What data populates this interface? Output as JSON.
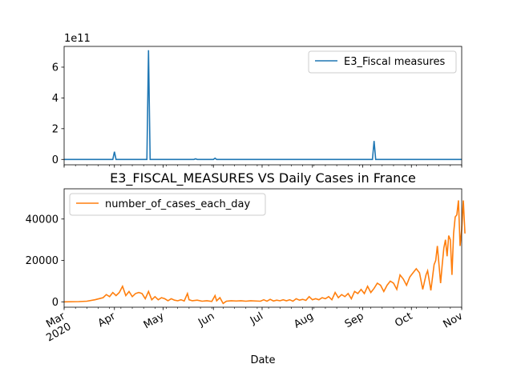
{
  "chart_data": [
    {
      "type": "line",
      "title": "",
      "xlabel": "",
      "ylabel": "",
      "offset_label": "1e11",
      "ylim": [
        -0.35,
        7.35
      ],
      "y_ticks": [
        0,
        2,
        4,
        6
      ],
      "y_tick_labels": [
        "0",
        "2",
        "4",
        "6"
      ],
      "xlim": [
        "2020-03-01",
        "2020-11-01"
      ],
      "grid": false,
      "legend": "upper right",
      "series": [
        {
          "name": "E3_Fiscal measures",
          "color": "#1f77b4",
          "points": [
            [
              "2020-03-01",
              0
            ],
            [
              "2020-03-31",
              0
            ],
            [
              "2020-04-01",
              0.5
            ],
            [
              "2020-04-02",
              0
            ],
            [
              "2020-04-21",
              0
            ],
            [
              "2020-04-22",
              7.1
            ],
            [
              "2020-04-23",
              0
            ],
            [
              "2020-05-20",
              0
            ],
            [
              "2020-05-21",
              0.04
            ],
            [
              "2020-05-22",
              0
            ],
            [
              "2020-06-01",
              0
            ],
            [
              "2020-06-02",
              0.08
            ],
            [
              "2020-06-03",
              0
            ],
            [
              "2020-09-07",
              0
            ],
            [
              "2020-09-08",
              1.2
            ],
            [
              "2020-09-09",
              0
            ],
            [
              "2020-11-01",
              0
            ]
          ]
        }
      ]
    },
    {
      "type": "line",
      "title": "E3_FISCAL_MEASURES VS Daily Cases in France",
      "xlabel": "Date",
      "ylabel": "",
      "ylim": [
        -2600,
        54600
      ],
      "y_ticks": [
        0,
        20000,
        40000
      ],
      "y_tick_labels": [
        "0",
        "20000",
        "40000"
      ],
      "xlim": [
        "2020-03-01",
        "2020-11-01"
      ],
      "x_ticks": [
        "2020-03-01",
        "2020-04-01",
        "2020-05-01",
        "2020-06-01",
        "2020-07-01",
        "2020-08-01",
        "2020-09-01",
        "2020-10-01",
        "2020-11-01"
      ],
      "x_tick_labels": [
        "Mar\n2020",
        "Apr",
        "May",
        "Jun",
        "Jul",
        "Aug",
        "Sep",
        "Oct",
        "Nov"
      ],
      "grid": false,
      "legend": "upper left",
      "series": [
        {
          "name": "number_of_cases_each_day",
          "color": "#ff7f0e",
          "points": [
            [
              "2020-03-01",
              0
            ],
            [
              "2020-03-10",
              100
            ],
            [
              "2020-03-15",
              300
            ],
            [
              "2020-03-20",
              1000
            ],
            [
              "2020-03-25",
              2000
            ],
            [
              "2020-03-27",
              3500
            ],
            [
              "2020-03-29",
              2500
            ],
            [
              "2020-03-31",
              4500
            ],
            [
              "2020-04-02",
              3000
            ],
            [
              "2020-04-04",
              4500
            ],
            [
              "2020-04-06",
              7500
            ],
            [
              "2020-04-08",
              3000
            ],
            [
              "2020-04-10",
              5000
            ],
            [
              "2020-04-12",
              2500
            ],
            [
              "2020-04-14",
              4000
            ],
            [
              "2020-04-16",
              4500
            ],
            [
              "2020-04-18",
              4000
            ],
            [
              "2020-04-20",
              1500
            ],
            [
              "2020-04-22",
              5000
            ],
            [
              "2020-04-24",
              1000
            ],
            [
              "2020-04-26",
              2500
            ],
            [
              "2020-04-28",
              1000
            ],
            [
              "2020-04-30",
              2000
            ],
            [
              "2020-05-02",
              1500
            ],
            [
              "2020-05-04",
              500
            ],
            [
              "2020-05-06",
              1500
            ],
            [
              "2020-05-08",
              800
            ],
            [
              "2020-05-10",
              500
            ],
            [
              "2020-05-12",
              1000
            ],
            [
              "2020-05-14",
              400
            ],
            [
              "2020-05-16",
              4000
            ],
            [
              "2020-05-17",
              1000
            ],
            [
              "2020-05-19",
              500
            ],
            [
              "2020-05-22",
              800
            ],
            [
              "2020-05-25",
              300
            ],
            [
              "2020-05-28",
              500
            ],
            [
              "2020-05-31",
              200
            ],
            [
              "2020-06-02",
              3000
            ],
            [
              "2020-06-03",
              500
            ],
            [
              "2020-06-05",
              2000
            ],
            [
              "2020-06-07",
              -800
            ],
            [
              "2020-06-09",
              300
            ],
            [
              "2020-06-12",
              500
            ],
            [
              "2020-06-15",
              400
            ],
            [
              "2020-06-18",
              500
            ],
            [
              "2020-06-21",
              300
            ],
            [
              "2020-06-24",
              500
            ],
            [
              "2020-06-27",
              400
            ],
            [
              "2020-06-30",
              300
            ],
            [
              "2020-07-02",
              1000
            ],
            [
              "2020-07-04",
              300
            ],
            [
              "2020-07-06",
              1200
            ],
            [
              "2020-07-08",
              400
            ],
            [
              "2020-07-10",
              800
            ],
            [
              "2020-07-12",
              500
            ],
            [
              "2020-07-14",
              1000
            ],
            [
              "2020-07-16",
              500
            ],
            [
              "2020-07-18",
              1000
            ],
            [
              "2020-07-20",
              300
            ],
            [
              "2020-07-22",
              1500
            ],
            [
              "2020-07-24",
              800
            ],
            [
              "2020-07-26",
              1200
            ],
            [
              "2020-07-28",
              700
            ],
            [
              "2020-07-30",
              2500
            ],
            [
              "2020-08-01",
              1000
            ],
            [
              "2020-08-03",
              1500
            ],
            [
              "2020-08-05",
              1000
            ],
            [
              "2020-08-07",
              2000
            ],
            [
              "2020-08-09",
              1500
            ],
            [
              "2020-08-11",
              2500
            ],
            [
              "2020-08-13",
              1000
            ],
            [
              "2020-08-15",
              4500
            ],
            [
              "2020-08-17",
              2000
            ],
            [
              "2020-08-19",
              3500
            ],
            [
              "2020-08-21",
              2500
            ],
            [
              "2020-08-23",
              4000
            ],
            [
              "2020-08-25",
              1500
            ],
            [
              "2020-08-27",
              5000
            ],
            [
              "2020-08-29",
              4000
            ],
            [
              "2020-08-31",
              6000
            ],
            [
              "2020-09-02",
              4000
            ],
            [
              "2020-09-04",
              7500
            ],
            [
              "2020-09-06",
              4500
            ],
            [
              "2020-09-08",
              6500
            ],
            [
              "2020-09-10",
              9000
            ],
            [
              "2020-09-12",
              8000
            ],
            [
              "2020-09-14",
              5000
            ],
            [
              "2020-09-16",
              8000
            ],
            [
              "2020-09-18",
              10000
            ],
            [
              "2020-09-20",
              9000
            ],
            [
              "2020-09-22",
              6000
            ],
            [
              "2020-09-24",
              13000
            ],
            [
              "2020-09-26",
              11000
            ],
            [
              "2020-09-28",
              8000
            ],
            [
              "2020-09-30",
              12000
            ],
            [
              "2020-10-02",
              14000
            ],
            [
              "2020-10-04",
              16000
            ],
            [
              "2020-10-06",
              14000
            ],
            [
              "2020-10-08",
              6000
            ],
            [
              "2020-10-10",
              13000
            ],
            [
              "2020-10-11",
              15000
            ],
            [
              "2020-10-13",
              5500
            ],
            [
              "2020-10-15",
              18000
            ],
            [
              "2020-10-16",
              20000
            ],
            [
              "2020-10-17",
              27000
            ],
            [
              "2020-10-19",
              9000
            ],
            [
              "2020-10-20",
              18000
            ],
            [
              "2020-10-21",
              26000
            ],
            [
              "2020-10-22",
              30000
            ],
            [
              "2020-10-23",
              22000
            ],
            [
              "2020-10-24",
              32000
            ],
            [
              "2020-10-25",
              30000
            ],
            [
              "2020-10-26",
              13000
            ],
            [
              "2020-10-27",
              33000
            ],
            [
              "2020-10-28",
              41000
            ],
            [
              "2020-10-29",
              42000
            ],
            [
              "2020-10-30",
              49000
            ],
            [
              "2020-10-31",
              27000
            ],
            [
              "2020-11-01",
              35000
            ],
            [
              "2020-11-02",
              49000
            ],
            [
              "2020-11-03",
              33000
            ]
          ]
        }
      ]
    }
  ]
}
